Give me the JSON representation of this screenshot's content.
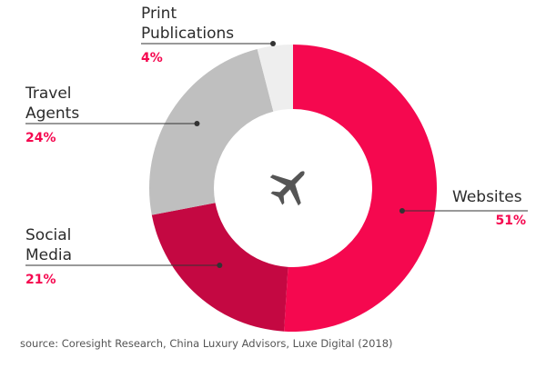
{
  "chart_data": {
    "type": "pie",
    "variant": "donut",
    "slices": [
      {
        "label": [
          "Websites"
        ],
        "value": 51,
        "display": "51%",
        "color": "#f5084f"
      },
      {
        "label": [
          "Social",
          "Media"
        ],
        "value": 21,
        "display": "21%",
        "color": "#c40842"
      },
      {
        "label": [
          "Travel",
          "Agents"
        ],
        "value": 24,
        "display": "24%",
        "color": "#bfbfbf"
      },
      {
        "label": [
          "Print",
          "Publications"
        ],
        "value": 4,
        "display": "4%",
        "color": "#eeeeee"
      }
    ],
    "center_icon": "airplane-icon",
    "percent_color": "#f5084f",
    "legend": "none"
  },
  "source": "source: Coresight Research, China Luxury Advisors, Luxe Digital (2018)"
}
